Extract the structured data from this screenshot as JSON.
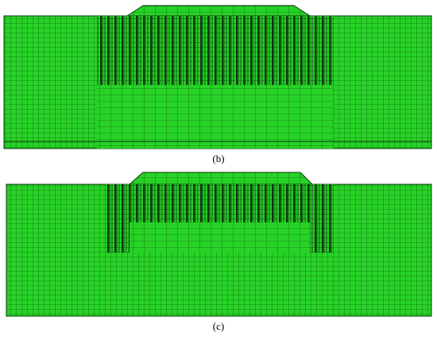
{
  "figures": [
    {
      "caption": "(b)"
    },
    {
      "caption": "(c)"
    }
  ]
}
